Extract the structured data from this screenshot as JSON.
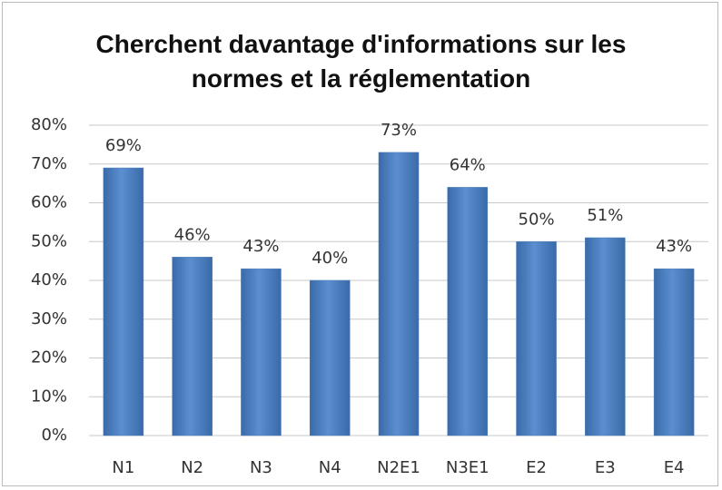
{
  "chart_data": {
    "type": "bar",
    "title": "Cherchent davantage d'informations sur les normes et la réglementation",
    "categories": [
      "N1",
      "N2",
      "N3",
      "N4",
      "N2E1",
      "N3E1",
      "E2",
      "E3",
      "E4"
    ],
    "values": [
      69,
      46,
      43,
      40,
      73,
      64,
      50,
      51,
      43
    ],
    "value_labels": [
      "69%",
      "46%",
      "43%",
      "40%",
      "73%",
      "64%",
      "50%",
      "51%",
      "43%"
    ],
    "color": "#4a7ebb",
    "ylim": [
      0,
      80
    ],
    "yticks": [
      {
        "value": 0,
        "label": "0%"
      },
      {
        "value": 10,
        "label": "10%"
      },
      {
        "value": 20,
        "label": "20%"
      },
      {
        "value": 30,
        "label": "30%"
      },
      {
        "value": 40,
        "label": "40%"
      },
      {
        "value": 50,
        "label": "50%"
      },
      {
        "value": 60,
        "label": "60%"
      },
      {
        "value": 70,
        "label": "70%"
      },
      {
        "value": 80,
        "label": "80%"
      }
    ],
    "grid": true
  }
}
